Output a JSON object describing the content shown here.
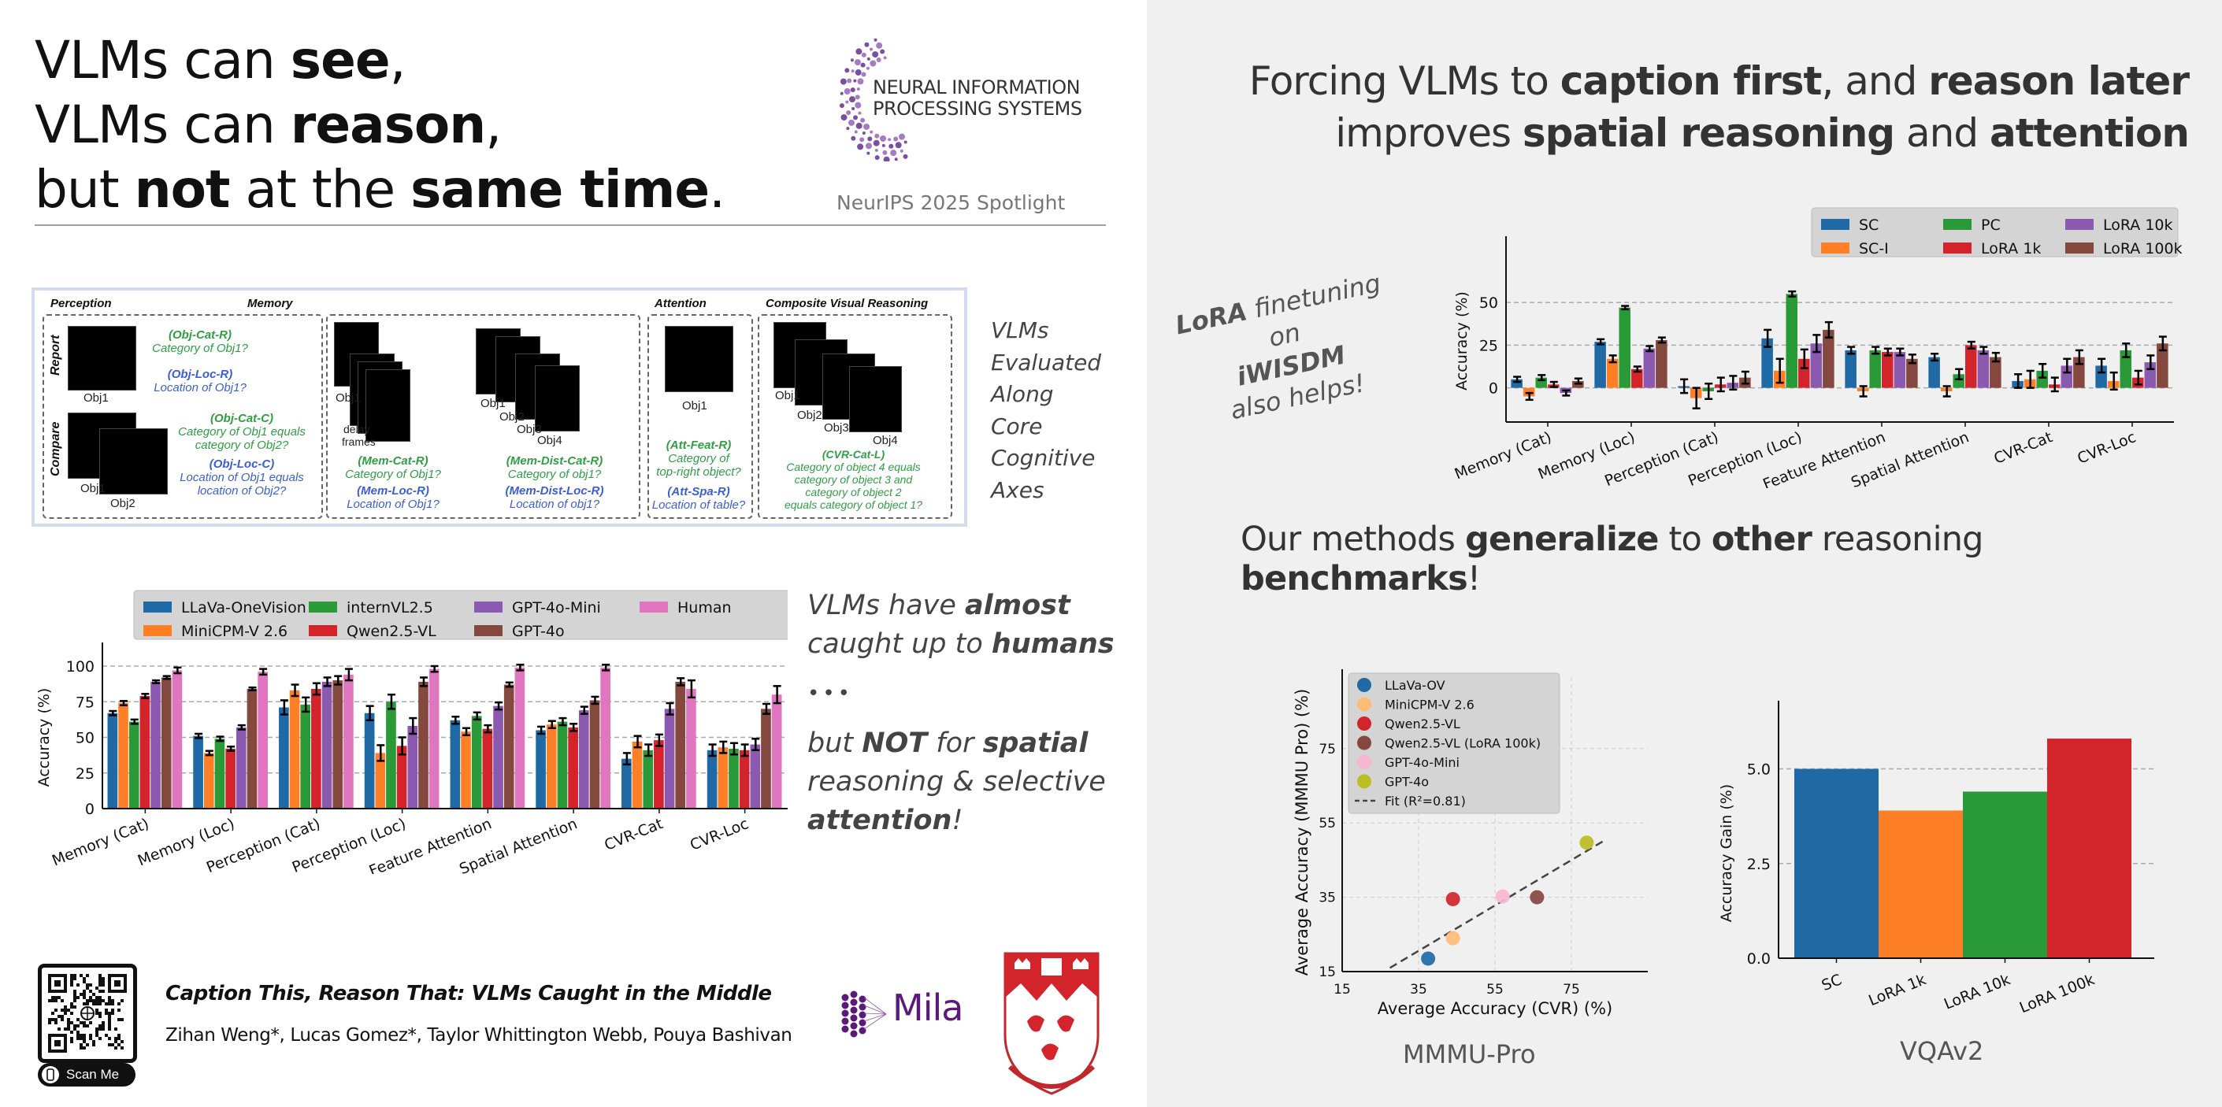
{
  "header": {
    "title_lines": [
      {
        "pre": "VLMs can ",
        "bold": "see",
        "post": ","
      },
      {
        "pre": "VLMs can ",
        "bold": "reason",
        "post": ","
      },
      {
        "pre": "but ",
        "bold": "not",
        "mid": " at the ",
        "bold2": "same time",
        "post": "."
      }
    ],
    "conference_logo_lines": [
      "NEURAL INFORMATION",
      "PROCESSING SYSTEMS"
    ],
    "spotlight": "NeurIPS 2025 Spotlight"
  },
  "figure": {
    "panels": {
      "perception": "Perception",
      "memory": "Memory",
      "attention": "Attention",
      "cvr": "Composite Visual Reasoning"
    },
    "row_labels": {
      "report": "Report",
      "compare": "Compare"
    },
    "obj_labels": {
      "obj1": "Obj1",
      "obj2": "Obj2",
      "obj3": "Obj3",
      "obj4": "Obj4",
      "delay": "delay",
      "frames": "frames"
    },
    "tasks": {
      "obj_cat_r": {
        "code": "(Obj-Cat-R)",
        "text": "Category of Obj1?"
      },
      "obj_loc_r": {
        "code": "(Obj-Loc-R)",
        "text": "Location of Obj1?"
      },
      "obj_cat_c": {
        "code": "(Obj-Cat-C)",
        "text1": "Category of Obj1 equals",
        "text2": "category of Obj2?"
      },
      "obj_loc_c": {
        "code": "(Obj-Loc-C)",
        "text1": "Location of Obj1 equals",
        "text2": "location of Obj2?"
      },
      "mem_cat_r": {
        "code": "(Mem-Cat-R)",
        "text": "Category of Obj1?"
      },
      "mem_loc_r": {
        "code": "(Mem-Loc-R)",
        "text": "Location of Obj1?"
      },
      "mem_dist_cat_r": {
        "code": "(Mem-Dist-Cat-R)",
        "text": "Category of obj1?"
      },
      "mem_dist_loc_r": {
        "code": "(Mem-Dist-Loc-R)",
        "text": "Location of obj1?"
      },
      "att_feat_r": {
        "code": "(Att-Feat-R)",
        "text1": "Category of",
        "text2": "top-right object?"
      },
      "att_spa_r": {
        "code": "(Att-Spa-R)",
        "text": "Location of table?"
      },
      "cvr_cat_l": {
        "code": "(CVR-Cat-L)",
        "lines": [
          "Category of object 4 equals",
          "category of object 3 and",
          "category of object 2",
          "equals category of object 1?"
        ]
      }
    }
  },
  "side_note": [
    "VLMs",
    "Evaluated",
    "Along",
    "Core",
    "Cognitive",
    "Axes"
  ],
  "claim": {
    "l1_pre": "VLMs have ",
    "l1_bold": "almost",
    "l2_pre": "caught up to ",
    "l2_bold": "humans",
    "dots": "•••",
    "l3_pre": "but ",
    "l3_bold": "NOT",
    "l3_mid": " for ",
    "l3_bold2": "spatial",
    "l4": "reasoning & selective",
    "l5_bold": "attention",
    "l5_post": "!"
  },
  "footer": {
    "paper_title": "Caption This, Reason That: VLMs Caught in the Middle",
    "authors": "Zihan Weng*, Lucas Gomez*, Taylor Whittington Webb, Pouya Bashivan",
    "scan_label": "Scan Me",
    "mila": "Mila"
  },
  "right": {
    "headline_l1": {
      "a": "Forcing VLMs to ",
      "b": "caption first",
      "c": ", and ",
      "d": "reason later"
    },
    "headline_l2": {
      "a": "improves ",
      "b": "spatial reasoning",
      "c": " and ",
      "d": "attention"
    },
    "lora_note": {
      "l1_bold": "LoRA",
      "l1": " finetuning on",
      "l2_bold": "iWISDM",
      "l3": "also helps!"
    },
    "headline2": {
      "a": "Our methods ",
      "b": "generalize",
      "c": " to ",
      "d": "other",
      "e": " reasoning ",
      "f": "benchmarks",
      "g": "!"
    },
    "bench1": "MMMU-Pro",
    "bench2": "VQAv2"
  },
  "colors": {
    "blue": "#1f6aa5",
    "orange": "#ff7f27",
    "green": "#2a9a38",
    "red": "#d3242b",
    "purple": "#8c59b0",
    "brown": "#84483f",
    "pink": "#e076c0",
    "olive": "#bcbd22",
    "light_orange": "#ffbb78",
    "light_pink": "#f7b6d2",
    "task_green": "#2f9e44",
    "task_blue": "#3b5fd1"
  },
  "chart_data": [
    {
      "id": "vlm-accuracy",
      "type": "bar",
      "title": "",
      "ylabel": "Accuracy (%)",
      "ylim": [
        0,
        100
      ],
      "yticks": [
        0,
        25,
        50,
        75,
        100
      ],
      "grid": "y-dashed",
      "legend": "top",
      "categories": [
        "Memory (Cat)",
        "Memory (Loc)",
        "Perception (Cat)",
        "Perception (Loc)",
        "Feature Attention",
        "Spatial Attention",
        "CVR-Cat",
        "CVR-Loc"
      ],
      "series": [
        {
          "name": "LLaVa-OneVision",
          "color": "#1f6aa5",
          "values": [
            67,
            51,
            71,
            67,
            62,
            55,
            35,
            41
          ],
          "err": [
            1.5,
            1.5,
            5,
            5,
            2.5,
            2.5,
            4,
            4
          ]
        },
        {
          "name": "MiniCPM-V 2.6",
          "color": "#ff7f27",
          "values": [
            74,
            39,
            83,
            39,
            54,
            59,
            47,
            43
          ],
          "err": [
            1.5,
            1.5,
            4,
            5.5,
            2.5,
            2.5,
            4,
            4
          ]
        },
        {
          "name": "internVL2.5",
          "color": "#2a9a38",
          "values": [
            61,
            49,
            73,
            75,
            65,
            61,
            41,
            42
          ],
          "err": [
            1.5,
            1.5,
            5,
            5,
            2.5,
            2.5,
            4,
            4
          ]
        },
        {
          "name": "Qwen2.5-VL",
          "color": "#d3242b",
          "values": [
            79,
            42,
            84,
            44,
            56,
            57,
            48,
            41
          ],
          "err": [
            1.5,
            1.5,
            4,
            6,
            2.5,
            2.5,
            4,
            4
          ]
        },
        {
          "name": "GPT-4o-Mini",
          "color": "#8c59b0",
          "values": [
            89,
            57,
            89,
            58,
            72,
            69,
            70,
            45
          ],
          "err": [
            1,
            1.5,
            3,
            5.5,
            2.5,
            2.5,
            4,
            4
          ]
        },
        {
          "name": "GPT-4o",
          "color": "#84483f",
          "values": [
            92,
            84,
            90,
            89,
            87,
            76,
            89,
            70
          ],
          "err": [
            1,
            1,
            3,
            3,
            1.5,
            2.5,
            2.5,
            3.5
          ]
        },
        {
          "name": "Human",
          "color": "#e076c0",
          "values": [
            97,
            96,
            94,
            98,
            99,
            99,
            84,
            80
          ],
          "err": [
            2,
            2,
            4,
            2,
            2,
            2,
            6,
            6
          ]
        }
      ]
    },
    {
      "id": "lora-gain",
      "type": "bar",
      "title": "",
      "ylabel": "Accuracy (%)",
      "ylim": [
        -20,
        75
      ],
      "yticks": [
        0,
        25,
        50
      ],
      "grid": "y-dashed",
      "legend": "top-right",
      "categories": [
        "Memory (Cat)",
        "Memory (Loc)",
        "Perception (Cat)",
        "Perception (Loc)",
        "Feature Attention",
        "Spatial Attention",
        "CVR-Cat",
        "CVR-Loc"
      ],
      "series": [
        {
          "name": "SC",
          "color": "#1f6aa5",
          "values": [
            5,
            27,
            1,
            29,
            22,
            18,
            4,
            13
          ],
          "err": [
            1.5,
            1.5,
            4,
            5,
            2,
            2,
            4,
            4
          ]
        },
        {
          "name": "SC-I",
          "color": "#ff7f27",
          "values": [
            -5,
            17,
            -6,
            10,
            -2,
            -2,
            5,
            4
          ],
          "err": [
            2,
            2,
            6,
            7,
            3,
            3,
            5,
            5
          ]
        },
        {
          "name": "PC",
          "color": "#2a9a38",
          "values": [
            6,
            47,
            -2,
            55,
            22,
            8,
            10,
            22
          ],
          "err": [
            1.5,
            1,
            4.5,
            1.5,
            2,
            3,
            4,
            4
          ]
        },
        {
          "name": "LoRA 1k",
          "color": "#d3242b",
          "values": [
            2,
            11,
            2,
            17,
            21,
            25,
            2,
            6
          ],
          "err": [
            1.5,
            1.5,
            4,
            5.5,
            2,
            2,
            4,
            4
          ]
        },
        {
          "name": "LoRA 10k",
          "color": "#8c59b0",
          "values": [
            -3,
            23,
            3,
            26,
            21,
            22,
            13,
            15
          ],
          "err": [
            1.5,
            1.5,
            4,
            5,
            2,
            2,
            4,
            4
          ]
        },
        {
          "name": "LoRA 100k",
          "color": "#84483f",
          "values": [
            4,
            28,
            6,
            34,
            17,
            18,
            18,
            26
          ],
          "err": [
            1.5,
            1.5,
            3.5,
            4.5,
            2.5,
            2.5,
            4,
            4
          ]
        }
      ]
    },
    {
      "id": "mmmu-scatter",
      "type": "scatter",
      "title": "MMMU-Pro",
      "xlabel": "Average Accuracy (CVR) (%)",
      "ylabel": "Average Accuracy (MMMU Pro) (%)",
      "xlim": [
        15,
        95
      ],
      "ylim": [
        15,
        90
      ],
      "xticks": [
        15,
        35,
        55,
        75
      ],
      "yticks": [
        15,
        35,
        55,
        75
      ],
      "grid": "both-dashed",
      "legend": "top-left",
      "points": [
        {
          "name": "LLaVa-OV",
          "color": "#1f6aa5",
          "x": 37.5,
          "y": 18.5
        },
        {
          "name": "MiniCPM-V 2.6",
          "color": "#ffbb78",
          "x": 44,
          "y": 24
        },
        {
          "name": "Qwen2.5-VL",
          "color": "#d3242b",
          "x": 44,
          "y": 34.5
        },
        {
          "name": "Qwen2.5-VL (LoRA 100k)",
          "color": "#84483f",
          "x": 66,
          "y": 35
        },
        {
          "name": "GPT-4o-Mini",
          "color": "#f7b6d2",
          "x": 57,
          "y": 35.2
        },
        {
          "name": "GPT-4o",
          "color": "#bcbd22",
          "x": 79,
          "y": 49.7
        }
      ],
      "fit": {
        "label": "Fit (R²=0.81)",
        "x": [
          27.5,
          84
        ],
        "y": [
          16,
          50.5
        ]
      }
    },
    {
      "id": "vqav2-gain",
      "type": "bar",
      "title": "VQAv2",
      "ylabel": "Accuracy Gain (%)",
      "ylim": [
        0,
        6.8
      ],
      "yticks": [
        0.0,
        2.5,
        5.0
      ],
      "grid": "y-dashed",
      "categories": [
        "SC",
        "LoRA 1k",
        "LoRA 10k",
        "LoRA 100k"
      ],
      "colors": [
        "#1f6aa5",
        "#ff7f27",
        "#2a9a38",
        "#d3242b"
      ],
      "values": [
        5.0,
        3.9,
        4.4,
        5.8
      ]
    }
  ]
}
